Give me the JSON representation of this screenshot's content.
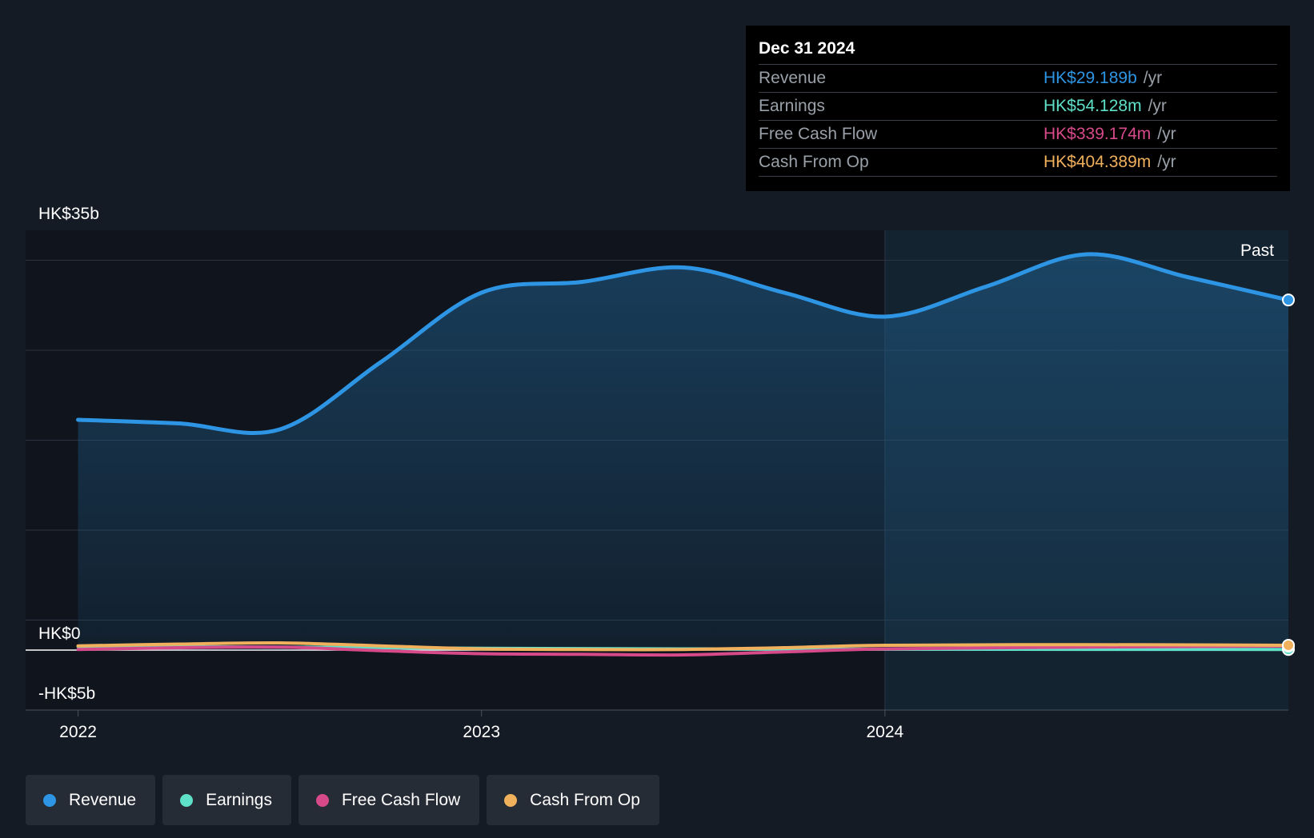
{
  "tooltip": {
    "date": "Dec 31 2024",
    "rows": [
      {
        "label": "Revenue",
        "value": "HK$29.189b",
        "unit": "/yr",
        "color": "#2d95e3"
      },
      {
        "label": "Earnings",
        "value": "HK$54.128m",
        "unit": "/yr",
        "color": "#5fe0c9"
      },
      {
        "label": "Free Cash Flow",
        "value": "HK$339.174m",
        "unit": "/yr",
        "color": "#d64a8a"
      },
      {
        "label": "Cash From Op",
        "value": "HK$404.389m",
        "unit": "/yr",
        "color": "#f0b05c"
      }
    ]
  },
  "legend": [
    {
      "label": "Revenue",
      "color": "#2d95e3"
    },
    {
      "label": "Earnings",
      "color": "#5fe0c9"
    },
    {
      "label": "Free Cash Flow",
      "color": "#d64a8a"
    },
    {
      "label": "Cash From Op",
      "color": "#f0b05c"
    }
  ],
  "chart_data": {
    "type": "area",
    "title": "",
    "xlabel": "",
    "ylabel": "",
    "y_tick_labels": [
      {
        "value": 35,
        "label": "HK$35b"
      },
      {
        "value": 0,
        "label": "HK$0"
      },
      {
        "value": -5,
        "label": "-HK$5b"
      }
    ],
    "x_tick_labels": [
      {
        "value": 2022.0,
        "label": "2022"
      },
      {
        "value": 2023.0,
        "label": "2023"
      },
      {
        "value": 2024.0,
        "label": "2024"
      }
    ],
    "xlim": [
      2021.87,
      2025.0
    ],
    "ylim": [
      -5,
      35
    ],
    "past_label": "Past",
    "past_start": 2024.0,
    "grid": true,
    "series": [
      {
        "name": "Revenue",
        "color": "#2d95e3",
        "fill": true,
        "x": [
          2022.0,
          2022.25,
          2022.5,
          2022.75,
          2023.0,
          2023.25,
          2023.5,
          2023.75,
          2024.0,
          2024.25,
          2024.5,
          2024.75,
          2025.0
        ],
        "y": [
          19.2,
          18.9,
          18.4,
          24.0,
          29.8,
          30.7,
          31.9,
          29.8,
          27.8,
          30.3,
          33.0,
          31.1,
          29.189
        ]
      },
      {
        "name": "Earnings",
        "color": "#5fe0c9",
        "fill": false,
        "x": [
          2022.0,
          2022.5,
          2023.0,
          2023.5,
          2024.0,
          2024.5,
          2025.0
        ],
        "y": [
          0.3,
          0.25,
          0.15,
          0.1,
          0.08,
          0.06,
          0.054
        ]
      },
      {
        "name": "Free Cash Flow",
        "color": "#d64a8a",
        "fill": false,
        "x": [
          2022.0,
          2022.25,
          2022.5,
          2022.75,
          2023.0,
          2023.25,
          2023.5,
          2023.75,
          2024.0,
          2024.5,
          2025.0
        ],
        "y": [
          0.05,
          0.2,
          0.25,
          -0.05,
          -0.3,
          -0.35,
          -0.4,
          -0.15,
          0.1,
          0.25,
          0.339
        ]
      },
      {
        "name": "Cash From Op",
        "color": "#f0b05c",
        "fill": false,
        "x": [
          2022.0,
          2022.25,
          2022.5,
          2022.75,
          2023.0,
          2023.25,
          2023.5,
          2023.75,
          2024.0,
          2024.5,
          2025.0
        ],
        "y": [
          0.35,
          0.5,
          0.6,
          0.35,
          0.1,
          0.05,
          0.05,
          0.2,
          0.4,
          0.45,
          0.404
        ]
      }
    ]
  }
}
